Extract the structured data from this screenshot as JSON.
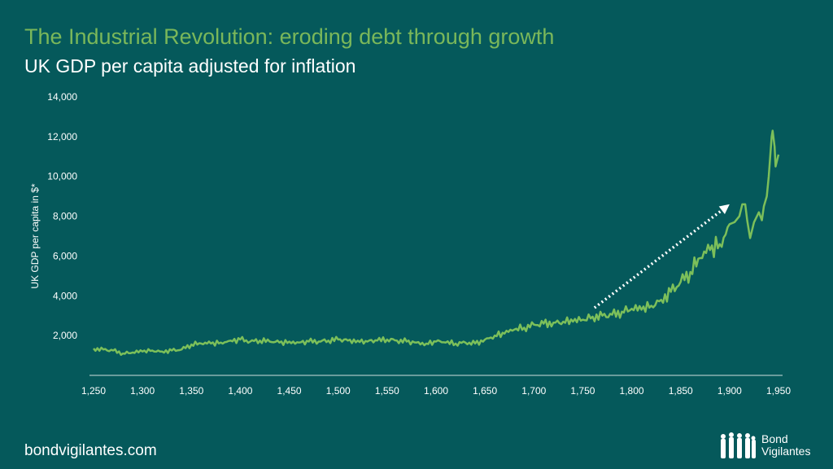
{
  "header": {
    "title": "The Industrial Revolution: eroding debt through growth",
    "subtitle": "UK GDP per capita adjusted for inflation"
  },
  "footer": {
    "website": "bondvigilantes.com",
    "logo_text_line1": "Bond",
    "logo_text_line2": "Vigilantes"
  },
  "colors": {
    "background": "#05595b",
    "line": "#7cbf5a",
    "title": "#7ab75a",
    "arrow": "#ffffff"
  },
  "chart_data": {
    "type": "line",
    "title": "UK GDP per capita adjusted for inflation",
    "xlabel": "",
    "ylabel": "UK GDP per capita in $*",
    "xlim": [
      1250,
      1950
    ],
    "ylim": [
      0,
      14000
    ],
    "xticks": [
      "1,250",
      "1,300",
      "1,350",
      "1,400",
      "1,450",
      "1,500",
      "1,550",
      "1,600",
      "1,650",
      "1,700",
      "1,750",
      "1,800",
      "1,850",
      "1,900",
      "1,950"
    ],
    "yticks": [
      "2,000",
      "4,000",
      "6,000",
      "8,000",
      "10,000",
      "12,000",
      "14,000"
    ],
    "grid": false,
    "annotation": {
      "type": "arrow",
      "style": "dotted",
      "from": [
        1762,
        3400
      ],
      "to": [
        1900,
        8600
      ]
    },
    "series": [
      {
        "name": "UK GDP per capita",
        "x": [
          1250,
          1260,
          1270,
          1280,
          1290,
          1300,
          1310,
          1320,
          1330,
          1340,
          1350,
          1360,
          1370,
          1380,
          1390,
          1400,
          1410,
          1420,
          1430,
          1440,
          1450,
          1460,
          1470,
          1480,
          1490,
          1500,
          1510,
          1520,
          1530,
          1540,
          1550,
          1560,
          1570,
          1580,
          1590,
          1600,
          1610,
          1620,
          1630,
          1640,
          1650,
          1660,
          1670,
          1680,
          1690,
          1700,
          1710,
          1720,
          1730,
          1740,
          1750,
          1760,
          1770,
          1780,
          1790,
          1800,
          1810,
          1820,
          1830,
          1840,
          1850,
          1860,
          1870,
          1880,
          1890,
          1900,
          1905,
          1910,
          1913,
          1916,
          1918,
          1921,
          1925,
          1930,
          1933,
          1935,
          1938,
          1940,
          1943,
          1944,
          1946,
          1947,
          1950
        ],
        "y": [
          1350,
          1300,
          1250,
          1100,
          1150,
          1200,
          1250,
          1200,
          1250,
          1300,
          1550,
          1600,
          1600,
          1650,
          1750,
          1800,
          1700,
          1750,
          1700,
          1650,
          1700,
          1650,
          1700,
          1700,
          1750,
          1800,
          1750,
          1750,
          1700,
          1750,
          1800,
          1750,
          1700,
          1650,
          1600,
          1700,
          1650,
          1600,
          1650,
          1600,
          1800,
          2000,
          2100,
          2300,
          2400,
          2550,
          2600,
          2650,
          2700,
          2700,
          2800,
          2950,
          3000,
          3050,
          3200,
          3350,
          3300,
          3500,
          3800,
          4200,
          4700,
          5200,
          5900,
          6300,
          6600,
          7600,
          7700,
          8000,
          8600,
          8600,
          7800,
          6900,
          7700,
          8200,
          7800,
          8500,
          9000,
          10000,
          12000,
          12300,
          11500,
          10500,
          11100
        ]
      }
    ]
  }
}
